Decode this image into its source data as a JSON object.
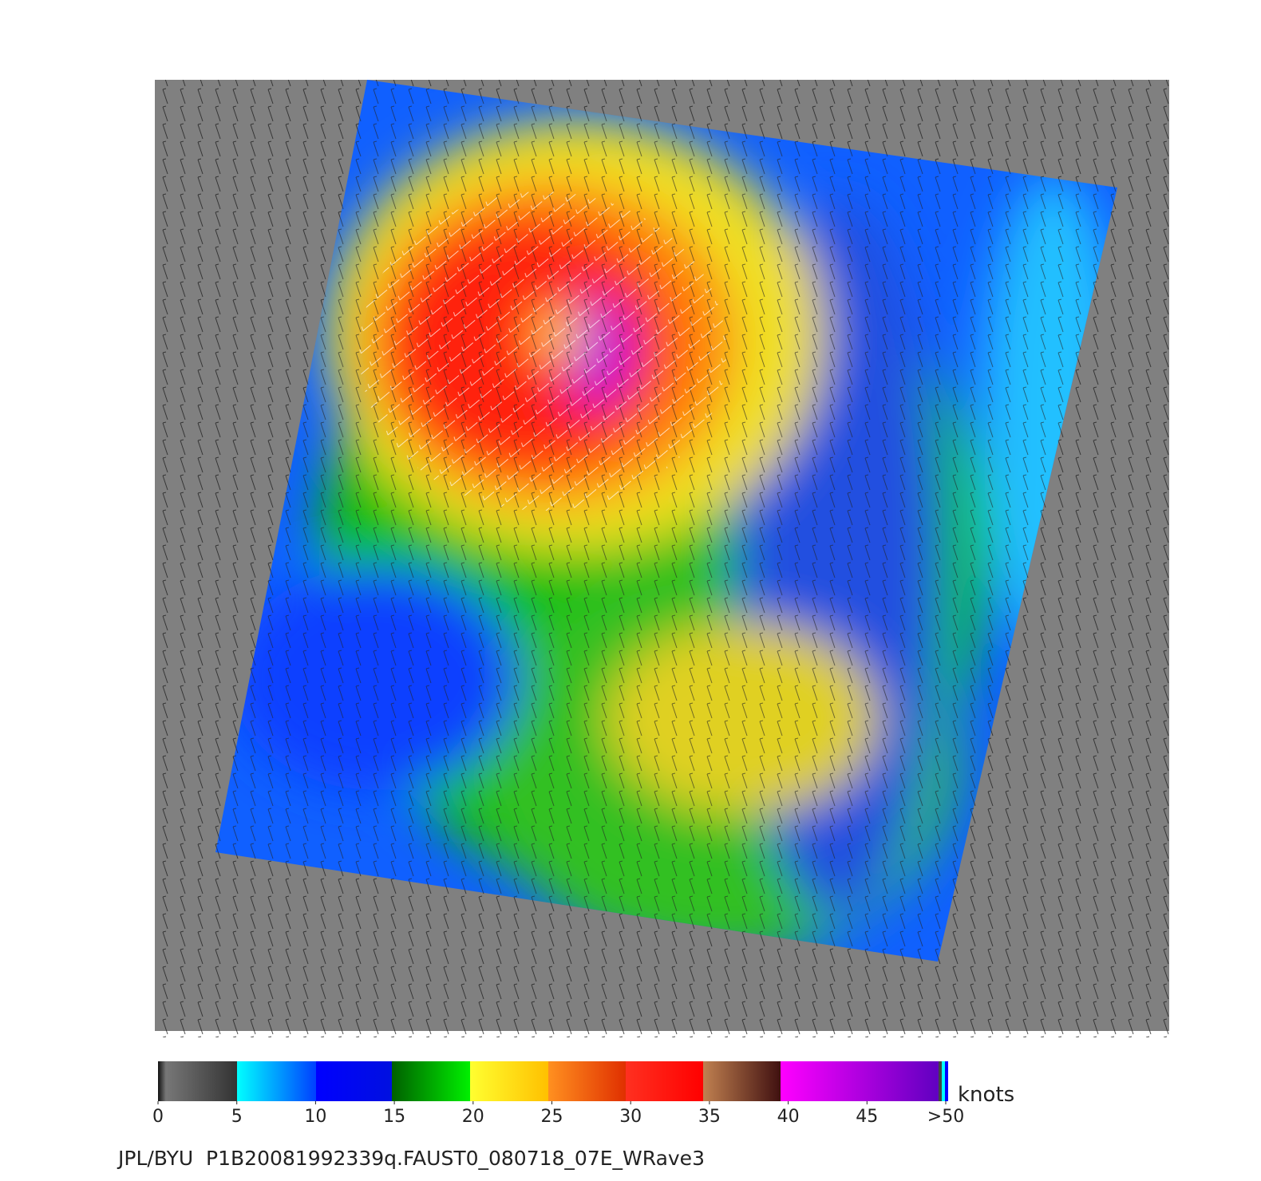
{
  "colorbar": {
    "unit": "knots",
    "range": [
      0,
      50
    ],
    "ticks": [
      0,
      5,
      10,
      15,
      20,
      25,
      30,
      35,
      40,
      45,
      {
        "value": 50,
        "label": ">50"
      }
    ]
  },
  "caption": "JPL/BYU  P1B20081992339q.FAUST0_080718_07E_WRave3"
}
